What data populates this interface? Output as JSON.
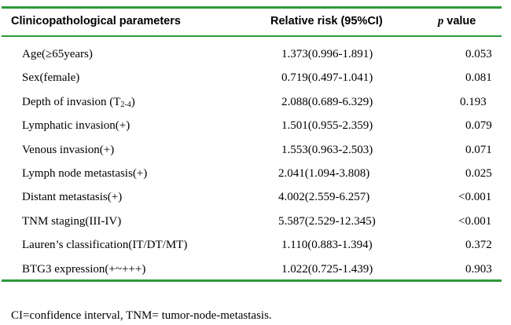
{
  "table": {
    "headers": {
      "param": "Clinicopathological    parameters",
      "rr": "Relative risk (95%CI)",
      "p_italic": "p",
      "p_rest": " value"
    },
    "rows": [
      {
        "param": "Age(≥65years)",
        "rr": "1.373(0.996-1.891)",
        "p": "0.053"
      },
      {
        "param": "Sex(female)",
        "rr": "0.719(0.497-1.041)",
        "p": "0.081"
      },
      {
        "param_pre": "Depth of invasion (T",
        "param_sub": "2-4",
        "param_post": ")",
        "rr": "2.088(0.689-6.329)",
        "p": "0.193"
      },
      {
        "param": "Lymphatic invasion(+)",
        "rr": "1.501(0.955-2.359)",
        "p": "0.079"
      },
      {
        "param": "Venous invasion(+)",
        "rr": "1.553(0.963-2.503)",
        "p": "0.071"
      },
      {
        "param": "Lymph node metastasis(+)",
        "rr": "2.041(1.094-3.808)",
        "p": "0.025"
      },
      {
        "param": "Distant metastasis(+)",
        "rr": "4.002(2.559-6.257)",
        "p": "<0.001"
      },
      {
        "param": "TNM staging(III-IV)",
        "rr": "5.587(2.529-12.345)",
        "p": "<0.001"
      },
      {
        "param": "Lauren’s classification(IT/DT/MT)",
        "rr": "1.110(0.883-1.394)",
        "p": "0.372"
      },
      {
        "param": "BTG3 expression(+~+++)",
        "rr": "1.022(0.725-1.439)",
        "p": "0.903"
      }
    ]
  },
  "footnote": "CI=confidence interval, TNM= tumor-node-metastasis.",
  "colors": {
    "rule": "#2e9a3a"
  }
}
